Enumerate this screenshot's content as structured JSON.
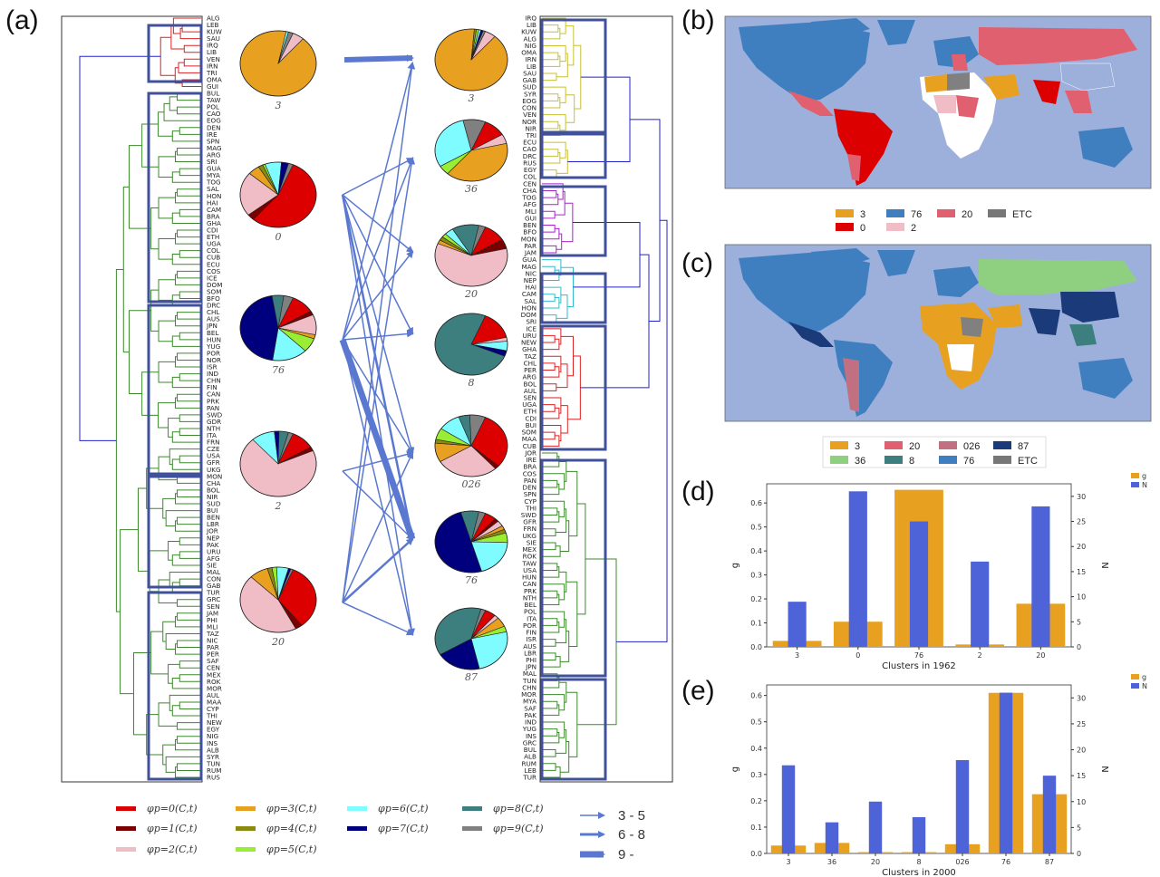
{
  "panel_labels": {
    "a": "(a)",
    "b": "(b)",
    "c": "(c)",
    "d": "(d)",
    "e": "(e)"
  },
  "colors": {
    "phi0": "#dd0000",
    "phi1": "#7a0000",
    "phi2": "#f0bcc6",
    "phi3": "#e8a020",
    "phi4": "#8a8a10",
    "phi5": "#99ee33",
    "phi6": "#7ffcff",
    "phi7": "#00007e",
    "phi8": "#3d7e7e",
    "phi9": "#808080",
    "g_bar": "#e8a020",
    "N_bar": "#4f63d8",
    "arrow": "#5a78d0",
    "box": "#40509a",
    "ocean": "#9db0dc"
  },
  "left_dendrogram": {
    "labels": [
      "ALG",
      "LEB",
      "KUW",
      "SAU",
      "IRQ",
      "LIB",
      "VEN",
      "IRN",
      "TRI",
      "OMA",
      "GUI",
      "BUL",
      "TAW",
      "POL",
      "CAO",
      "EOG",
      "DEN",
      "IRE",
      "SPN",
      "MAG",
      "ARG",
      "SRI",
      "GUA",
      "MYA",
      "TOG",
      "SAL",
      "HON",
      "HAI",
      "CAM",
      "BRA",
      "GHA",
      "CDI",
      "ETH",
      "UGA",
      "COL",
      "CUB",
      "ECU",
      "COS",
      "ICE",
      "DOM",
      "SOM",
      "BFO",
      "DRC",
      "CHL",
      "AUS",
      "JPN",
      "BEL",
      "HUN",
      "YUG",
      "POR",
      "NOR",
      "ISR",
      "IND",
      "CHN",
      "FIN",
      "CAN",
      "PRK",
      "PAN",
      "SWD",
      "GDR",
      "NTH",
      "ITA",
      "FRN",
      "CZE",
      "USA",
      "GFR",
      "UKG",
      "MON",
      "CHA",
      "BOL",
      "NIR",
      "SUD",
      "BUI",
      "BEN",
      "LBR",
      "JOR",
      "NEP",
      "PAK",
      "URU",
      "AFG",
      "SIE",
      "MAL",
      "CON",
      "GAB",
      "TUR",
      "GRC",
      "SEN",
      "JAM",
      "PHI",
      "MLI",
      "TAZ",
      "NIC",
      "PAR",
      "PER",
      "SAF",
      "CEN",
      "MEX",
      "ROK",
      "MOR",
      "AUL",
      "MAA",
      "CYP",
      "THI",
      "NEW",
      "EGY",
      "NIG",
      "INS",
      "ALB",
      "SYR",
      "TUN",
      "RUM",
      "RUS"
    ]
  },
  "right_dendrogram": {
    "labels": [
      "IRQ",
      "LIB",
      "KUW",
      "ALG",
      "NIG",
      "OMA",
      "IRN",
      "LIB",
      "SAU",
      "GAB",
      "SUD",
      "SYR",
      "EOG",
      "CON",
      "VEN",
      "NOR",
      "NIR",
      "TRI",
      "ECU",
      "CAO",
      "DRC",
      "RUS",
      "EGY",
      "COL",
      "CEN",
      "CHA",
      "TOG",
      "AFG",
      "MLI",
      "GUI",
      "BEN",
      "BFO",
      "MON",
      "PAR",
      "JAM",
      "GUA",
      "MAG",
      "NIC",
      "NEP",
      "HAI",
      "CAM",
      "SAL",
      "HON",
      "DOM",
      "SRI",
      "ICE",
      "URU",
      "NEW",
      "GHA",
      "TAZ",
      "CHL",
      "PER",
      "ARG",
      "BOL",
      "AUL",
      "SEN",
      "UGA",
      "ETH",
      "CDI",
      "BUI",
      "SOM",
      "MAA",
      "CUB",
      "JOR",
      "IRE",
      "BRA",
      "COS",
      "PAN",
      "DEN",
      "SPN",
      "CYP",
      "THI",
      "SWD",
      "GFR",
      "FRN",
      "UKG",
      "SIE",
      "MEX",
      "ROK",
      "TAW",
      "USA",
      "HUN",
      "CAN",
      "PRK",
      "NTH",
      "BEL",
      "POL",
      "ITA",
      "POR",
      "FIN",
      "ISR",
      "AUS",
      "LBR",
      "PHI",
      "JPN",
      "MAL",
      "TUN",
      "CHN",
      "MOR",
      "MYA",
      "SAF",
      "PAK",
      "IND",
      "YUG",
      "INS",
      "GRC",
      "BUL",
      "ALB",
      "RUM",
      "LEB",
      "TUR"
    ]
  },
  "pies_1962": [
    {
      "label": "3",
      "fractions": [
        0,
        0,
        0.05,
        0.92,
        0,
        0,
        0.01,
        0,
        0,
        0.02
      ]
    },
    {
      "label": "0",
      "fractions": [
        0.55,
        0.03,
        0.22,
        0.05,
        0.02,
        0.01,
        0.07,
        0.03,
        0,
        0.02
      ]
    },
    {
      "label": "76",
      "fractions": [
        0.1,
        0.02,
        0.1,
        0.02,
        0,
        0.07,
        0.15,
        0.45,
        0.05,
        0.04
      ]
    },
    {
      "label": "2",
      "fractions": [
        0.1,
        0.02,
        0.7,
        0,
        0,
        0,
        0.1,
        0.02,
        0.04,
        0.02
      ]
    },
    {
      "label": "20",
      "fractions": [
        0.33,
        0.03,
        0.45,
        0.08,
        0.02,
        0.02,
        0.05,
        0.01,
        0,
        0.01
      ]
    }
  ],
  "pies_2000": [
    {
      "label": "3",
      "fractions": [
        0,
        0,
        0.05,
        0.9,
        0.01,
        0.01,
        0.01,
        0.01,
        0,
        0.01
      ]
    },
    {
      "label": "36",
      "fractions": [
        0.1,
        0,
        0.05,
        0.4,
        0,
        0.05,
        0.3,
        0,
        0,
        0.1
      ]
    },
    {
      "label": "20",
      "fractions": [
        0.1,
        0.05,
        0.6,
        0.02,
        0.02,
        0.02,
        0.04,
        0,
        0.12,
        0.03
      ]
    },
    {
      "label": "8",
      "fractions": [
        0.15,
        0,
        0.02,
        0,
        0,
        0,
        0.05,
        0.03,
        0.75,
        0
      ]
    },
    {
      "label": "026",
      "fractions": [
        0.3,
        0.02,
        0.28,
        0.1,
        0.02,
        0.06,
        0.1,
        0,
        0.05,
        0.07
      ]
    },
    {
      "label": "76",
      "fractions": [
        0.05,
        0.02,
        0.03,
        0.02,
        0.02,
        0.05,
        0.2,
        0.5,
        0.08,
        0.03
      ]
    },
    {
      "label": "87",
      "fractions": [
        0.05,
        0,
        0.02,
        0.05,
        0,
        0.03,
        0.25,
        0.2,
        0.38,
        0.02
      ]
    }
  ],
  "phi_legend": [
    {
      "key": "phi0",
      "label": "φp=0(C,t)"
    },
    {
      "key": "phi1",
      "label": "φp=1(C,t)"
    },
    {
      "key": "phi2",
      "label": "φp=2(C,t)"
    },
    {
      "key": "phi3",
      "label": "φp=3(C,t)"
    },
    {
      "key": "phi4",
      "label": "φp=4(C,t)"
    },
    {
      "key": "phi5",
      "label": "φp=5(C,t)"
    },
    {
      "key": "phi6",
      "label": "φp=6(C,t)"
    },
    {
      "key": "phi7",
      "label": "φp=7(C,t)"
    },
    {
      "key": "phi8",
      "label": "φp=8(C,t)"
    },
    {
      "key": "phi9",
      "label": "φp=9(C,t)"
    }
  ],
  "arrow_legend": [
    {
      "label": "3 - 5"
    },
    {
      "label": "6 - 8"
    },
    {
      "label": "9 -"
    }
  ],
  "map_b_legend": [
    {
      "label": "3",
      "color": "#e8a020"
    },
    {
      "label": "76",
      "color": "#3f7fc0"
    },
    {
      "label": "20",
      "color": "#e06070"
    },
    {
      "label": "ETC",
      "color": "#777777"
    },
    {
      "label": "0",
      "color": "#dd0000"
    },
    {
      "label": "2",
      "color": "#f0bcc6"
    }
  ],
  "map_c_legend": [
    {
      "label": "3",
      "color": "#e8a020"
    },
    {
      "label": "20",
      "color": "#e06070"
    },
    {
      "label": "026",
      "color": "#c07080"
    },
    {
      "label": "87",
      "color": "#1a3a7a"
    },
    {
      "label": "36",
      "color": "#8fd080"
    },
    {
      "label": "8",
      "color": "#3d7e7e"
    },
    {
      "label": "76",
      "color": "#3f7fc0"
    },
    {
      "label": "ETC",
      "color": "#777777"
    }
  ],
  "chart_data": [
    {
      "type": "bar",
      "categories": [
        "3",
        "0",
        "76",
        "2",
        "20"
      ],
      "series": [
        {
          "name": "g",
          "axis": "left",
          "values": [
            0.025,
            0.105,
            0.655,
            0.01,
            0.18
          ]
        },
        {
          "name": "N",
          "axis": "right",
          "values": [
            9,
            31,
            25,
            17,
            28
          ]
        }
      ],
      "xlabel": "Clusters in 1962",
      "ylabel": "g",
      "ylabel_right": "N",
      "ylim": [
        0,
        0.68
      ],
      "ylim_right": [
        0,
        32.5
      ],
      "yticks": [
        0.0,
        0.1,
        0.2,
        0.3,
        0.4,
        0.5,
        0.6
      ],
      "yticks_right": [
        0,
        5,
        10,
        15,
        20,
        25,
        30
      ],
      "legend": "top-right"
    },
    {
      "type": "bar",
      "categories": [
        "3",
        "36",
        "20",
        "8",
        "026",
        "76",
        "87"
      ],
      "series": [
        {
          "name": "g",
          "axis": "left",
          "values": [
            0.03,
            0.04,
            0.005,
            0.005,
            0.035,
            0.61,
            0.225
          ]
        },
        {
          "name": "N",
          "axis": "right",
          "values": [
            17,
            6,
            10,
            7,
            18,
            31,
            15
          ]
        }
      ],
      "xlabel": "Clusters in 2000",
      "ylabel": "g",
      "ylabel_right": "N",
      "ylim": [
        0,
        0.64
      ],
      "ylim_right": [
        0,
        32.5
      ],
      "yticks": [
        0.0,
        0.1,
        0.2,
        0.3,
        0.4,
        0.5,
        0.6
      ],
      "yticks_right": [
        0,
        5,
        10,
        15,
        20,
        25,
        30
      ],
      "legend": "top-right"
    }
  ]
}
